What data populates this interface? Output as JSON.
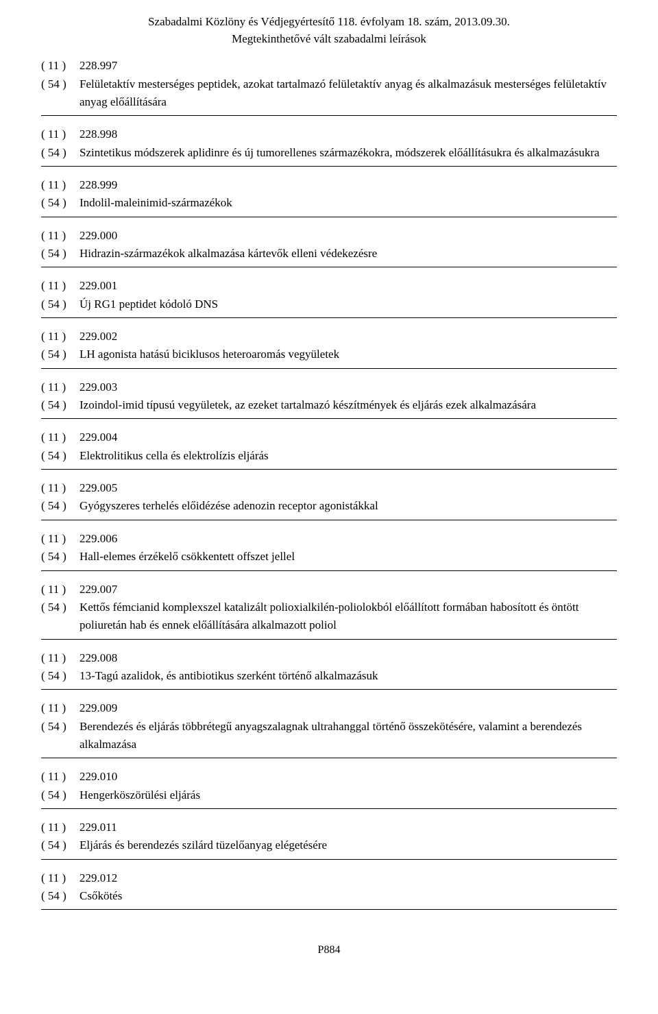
{
  "header": {
    "line1": "Szabadalmi Közlöny és Védjegyértesítő 118. évfolyam 18. szám, 2013.09.30.",
    "line2": "Megtekinthetővé vált szabadalmi leírások"
  },
  "labels": {
    "code11": "( 11 )",
    "code54": "( 54 )"
  },
  "entries": [
    {
      "num": "228.997",
      "title": "Felületaktív mesterséges peptidek, azokat tartalmazó felületaktív anyag és alkalmazásuk mesterséges felületaktív anyag előállítására"
    },
    {
      "num": "228.998",
      "title": "Szintetikus módszerek aplidinre és új tumorellenes származékokra, módszerek előállításukra és alkalmazásukra"
    },
    {
      "num": "228.999",
      "title": "Indolil-maleinimid-származékok"
    },
    {
      "num": "229.000",
      "title": "Hidrazin-származékok alkalmazása kártevők elleni védekezésre"
    },
    {
      "num": "229.001",
      "title": "Új RG1 peptidet kódoló DNS"
    },
    {
      "num": "229.002",
      "title": "LH agonista hatású biciklusos heteroaromás vegyületek"
    },
    {
      "num": "229.003",
      "title": "Izoindol-imid típusú vegyületek, az ezeket tartalmazó készítmények és eljárás ezek alkalmazására"
    },
    {
      "num": "229.004",
      "title": "Elektrolitikus cella és elektrolízis eljárás"
    },
    {
      "num": "229.005",
      "title": "Gyógyszeres terhelés előidézése adenozin receptor agonistákkal"
    },
    {
      "num": "229.006",
      "title": "Hall-elemes érzékelő csökkentett offszet jellel"
    },
    {
      "num": "229.007",
      "title": "Kettős fémcianid komplexszel katalizált polioxialkilén-poliolokból előállított formában habosított és öntött poliuretán hab és ennek előállítására alkalmazott poliol"
    },
    {
      "num": "229.008",
      "title": "13-Tagú azalidok, és antibiotikus szerként történő alkalmazásuk"
    },
    {
      "num": "229.009",
      "title": "Berendezés és eljárás többrétegű anyagszalagnak ultrahanggal történő összekötésére, valamint a berendezés alkalmazása"
    },
    {
      "num": "229.010",
      "title": "Hengerköszörülési eljárás"
    },
    {
      "num": "229.011",
      "title": "Eljárás és berendezés szilárd tüzelőanyag elégetésére"
    },
    {
      "num": "229.012",
      "title": "Csőkötés"
    }
  ],
  "pageNumber": "P884"
}
